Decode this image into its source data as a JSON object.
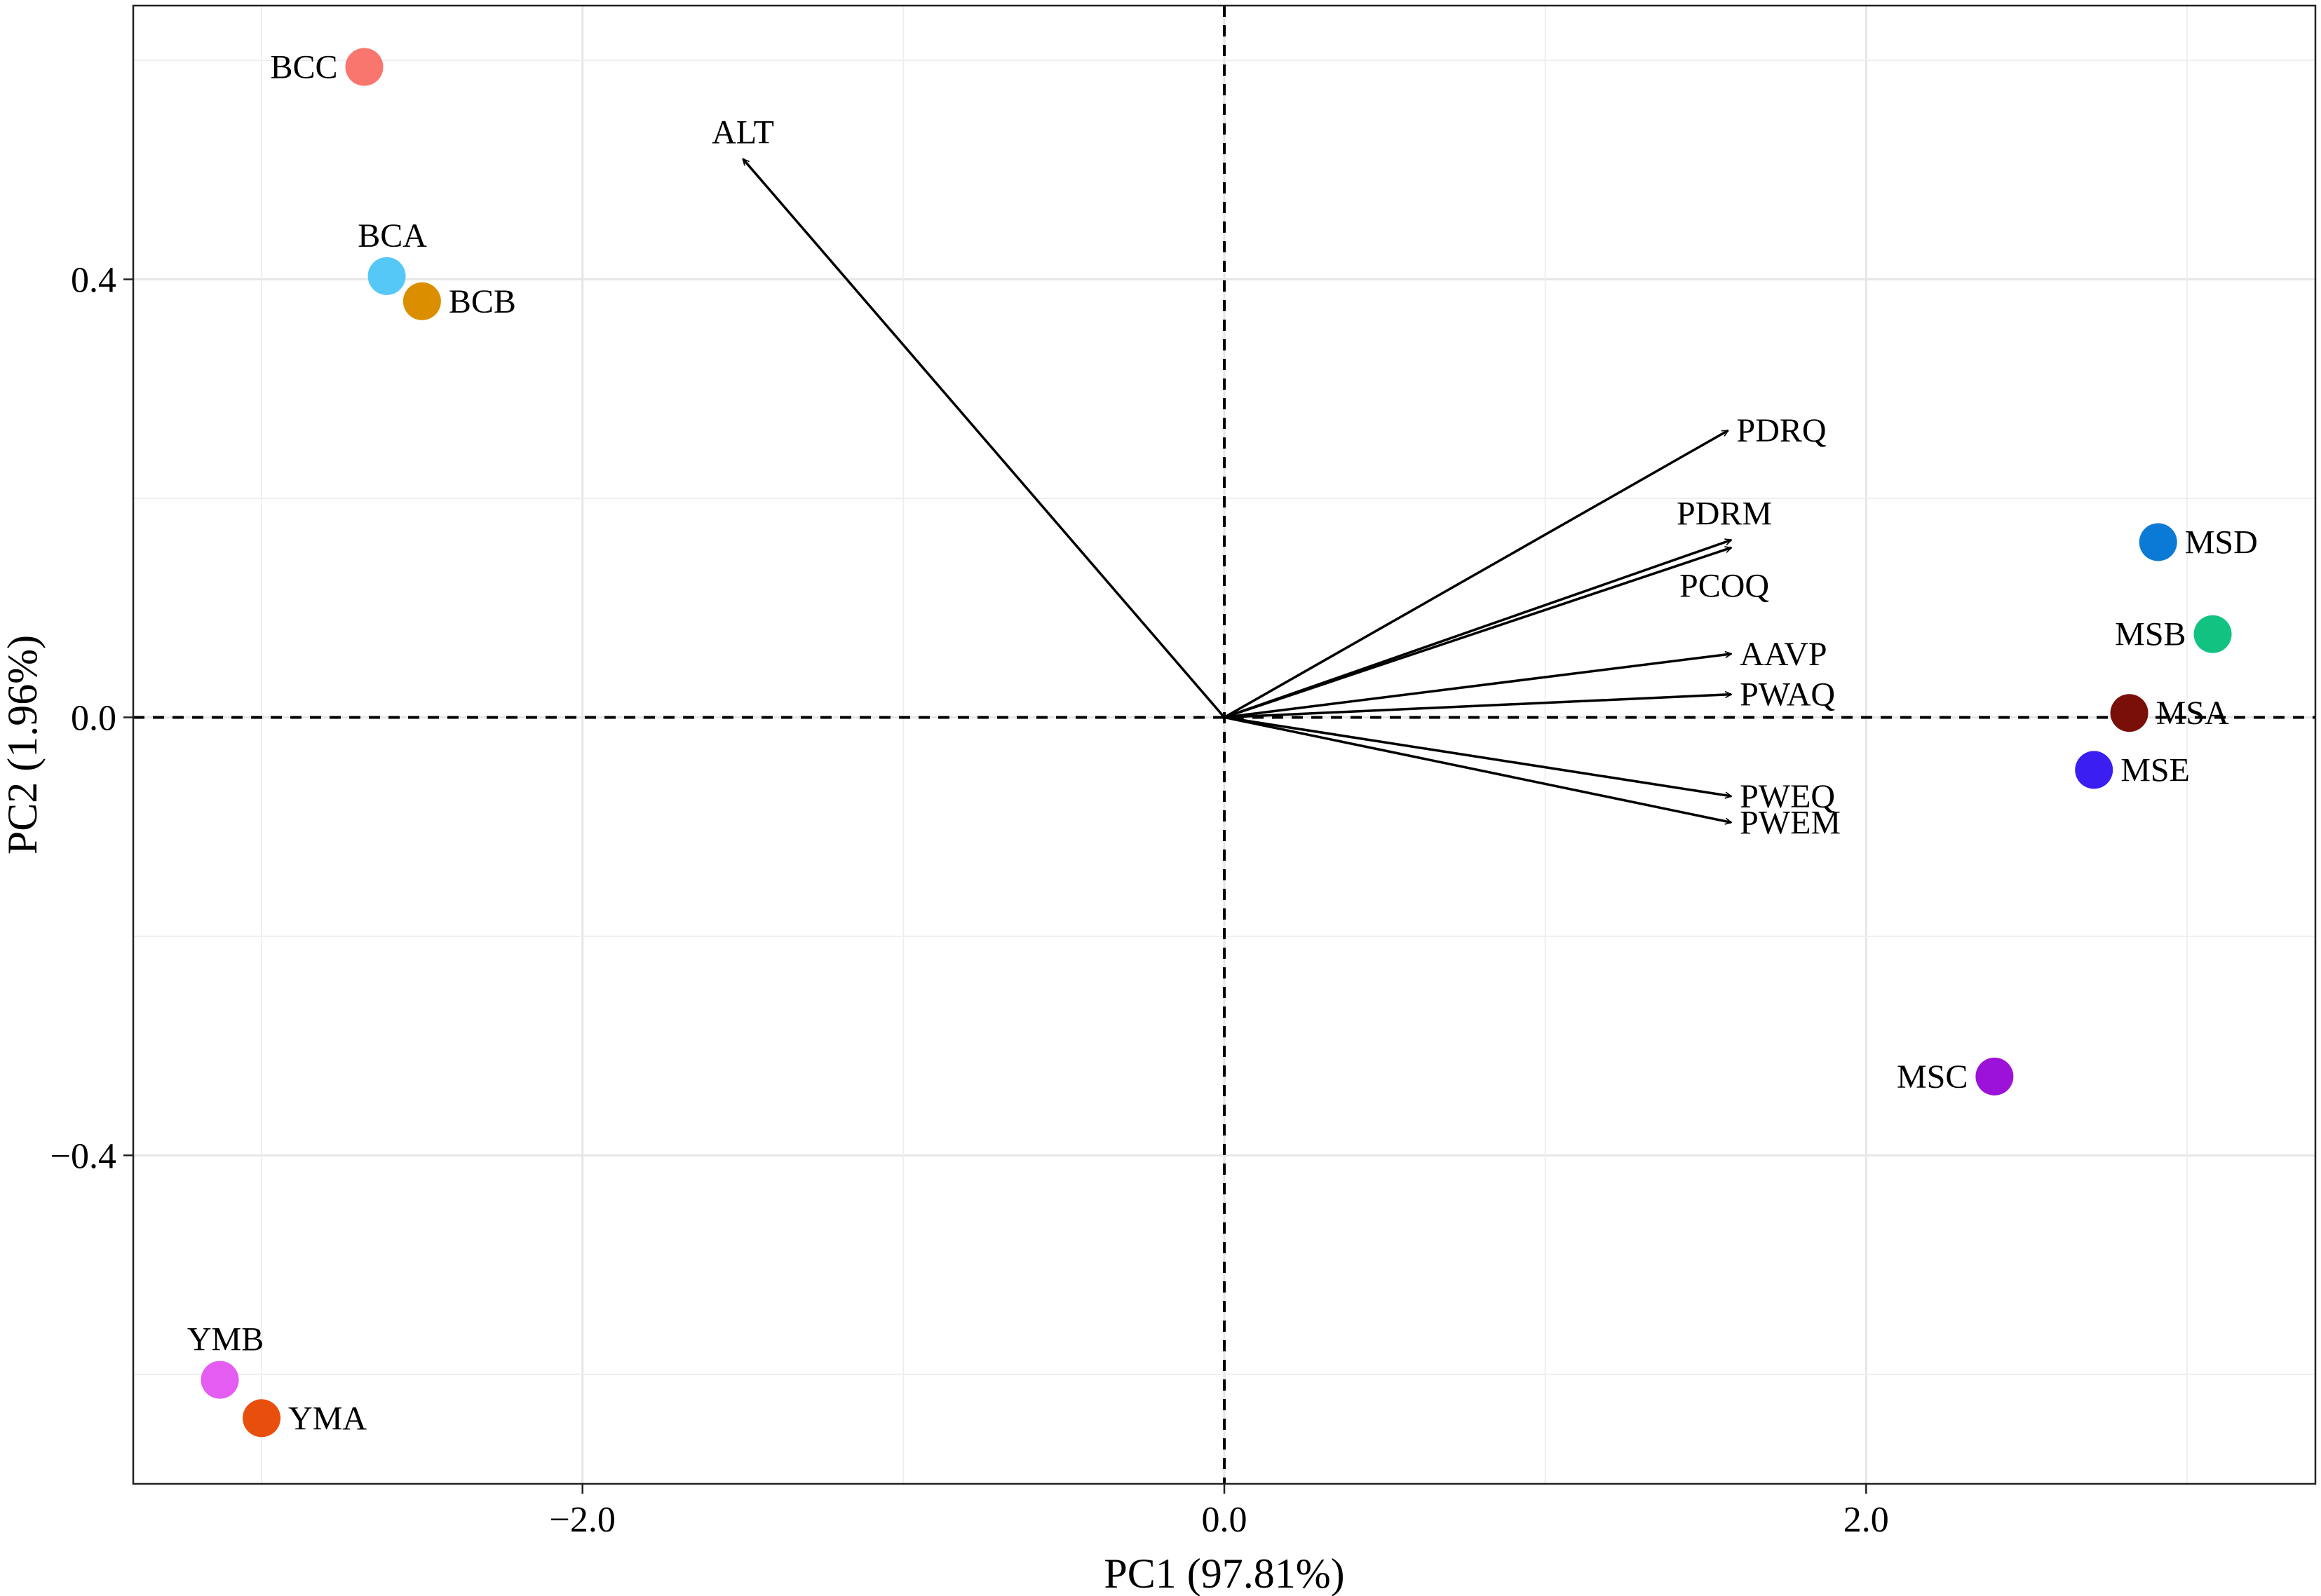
{
  "chart_data": {
    "type": "scatter",
    "subtype": "pca-biplot",
    "xlabel": "PC1 (97.81%)",
    "ylabel": "PC2 (1.96%)",
    "xlim": [
      -3.4,
      3.4
    ],
    "ylim": [
      -0.7,
      0.65
    ],
    "x_ticks": [
      -2.0,
      0.0,
      2.0
    ],
    "x_tick_labels": [
      "−2.0",
      "0.0",
      "2.0"
    ],
    "y_ticks": [
      -0.4,
      0.0,
      0.4
    ],
    "y_tick_labels": [
      "−0.4",
      "0.0",
      "0.4"
    ],
    "x_minor_grid": [
      -3.0,
      -1.0,
      1.0,
      3.0
    ],
    "y_minor_grid": [
      -0.6,
      -0.2,
      0.2,
      0.6
    ],
    "grid": true,
    "reference_lines": {
      "x": 0.0,
      "y": 0.0,
      "style": "dashed"
    },
    "points": [
      {
        "name": "BCC",
        "x": -2.68,
        "y": 0.594,
        "color": "#F8766D",
        "label_pos": "left"
      },
      {
        "name": "BCA",
        "x": -2.61,
        "y": 0.403,
        "color": "#56C8F8",
        "label_pos": "top"
      },
      {
        "name": "BCB",
        "x": -2.5,
        "y": 0.38,
        "color": "#DB8E00",
        "label_pos": "right"
      },
      {
        "name": "YMB",
        "x": -3.13,
        "y": -0.605,
        "color": "#E55CF2",
        "label_pos": "top"
      },
      {
        "name": "YMA",
        "x": -3.0,
        "y": -0.64,
        "color": "#E84F0C",
        "label_pos": "right"
      },
      {
        "name": "MSD",
        "x": 2.91,
        "y": 0.16,
        "color": "#0A7AD6",
        "label_pos": "right"
      },
      {
        "name": "MSB",
        "x": 3.08,
        "y": 0.076,
        "color": "#11C281",
        "label_pos": "left"
      },
      {
        "name": "MSA",
        "x": 2.82,
        "y": 0.004,
        "color": "#7A0F0A",
        "label_pos": "right"
      },
      {
        "name": "MSE",
        "x": 2.71,
        "y": -0.048,
        "color": "#3A1EF2",
        "label_pos": "right"
      },
      {
        "name": "MSC",
        "x": 2.4,
        "y": -0.328,
        "color": "#9D12D8",
        "label_pos": "left"
      }
    ],
    "vectors": [
      {
        "name": "ALT",
        "x": -1.5,
        "y": 0.51,
        "label_pos": "top"
      },
      {
        "name": "PDRQ",
        "x": 1.57,
        "y": 0.262,
        "label_pos": "right"
      },
      {
        "name": "PDRM",
        "x": 1.58,
        "y": 0.162,
        "label_pos": "top"
      },
      {
        "name": "PCOQ",
        "x": 1.58,
        "y": 0.155,
        "label_pos": "bottom"
      },
      {
        "name": "AAVP",
        "x": 1.58,
        "y": 0.058,
        "label_pos": "right"
      },
      {
        "name": "PWAQ",
        "x": 1.58,
        "y": 0.021,
        "label_pos": "right"
      },
      {
        "name": "PWEQ",
        "x": 1.58,
        "y": -0.072,
        "label_pos": "right"
      },
      {
        "name": "PWEM",
        "x": 1.58,
        "y": -0.096,
        "label_pos": "right"
      }
    ]
  }
}
